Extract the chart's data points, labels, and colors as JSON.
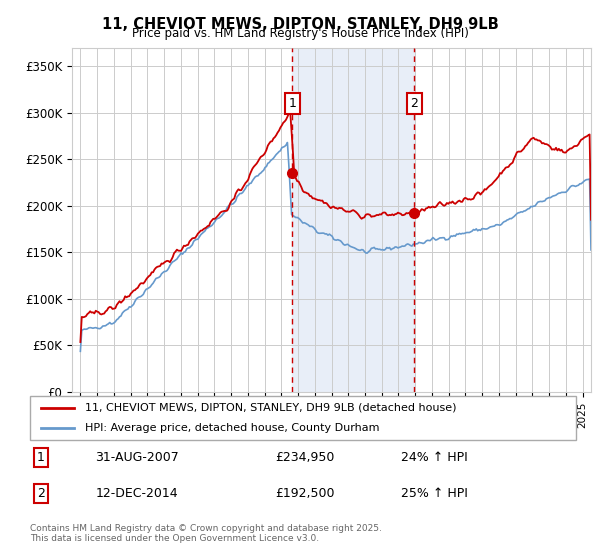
{
  "title": "11, CHEVIOT MEWS, DIPTON, STANLEY, DH9 9LB",
  "subtitle": "Price paid vs. HM Land Registry's House Price Index (HPI)",
  "legend_line1": "11, CHEVIOT MEWS, DIPTON, STANLEY, DH9 9LB (detached house)",
  "legend_line2": "HPI: Average price, detached house, County Durham",
  "red_color": "#cc0000",
  "blue_color": "#6699cc",
  "span_color": "#e8eef8",
  "annotation1_date": "31-AUG-2007",
  "annotation1_price": "£234,950",
  "annotation1_hpi": "24% ↑ HPI",
  "annotation2_date": "12-DEC-2014",
  "annotation2_price": "£192,500",
  "annotation2_hpi": "25% ↑ HPI",
  "vline1_x": 2007.67,
  "vline2_x": 2014.95,
  "ylim": [
    0,
    370000
  ],
  "xlim": [
    1994.5,
    2025.5
  ],
  "yticks": [
    0,
    50000,
    100000,
    150000,
    200000,
    250000,
    300000,
    350000
  ],
  "ytick_labels": [
    "£0",
    "£50K",
    "£100K",
    "£150K",
    "£200K",
    "£250K",
    "£300K",
    "£350K"
  ],
  "footer": "Contains HM Land Registry data © Crown copyright and database right 2025.\nThis data is licensed under the Open Government Licence v3.0."
}
